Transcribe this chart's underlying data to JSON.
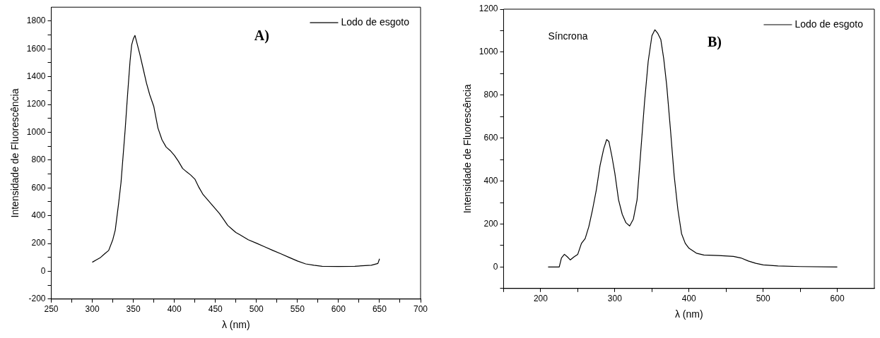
{
  "chart_data": [
    {
      "type": "line",
      "xlabel": "λ (nm)",
      "ylabel": "Intensidade de Fluorescência",
      "annotations": [
        "A)"
      ],
      "legend": "top right",
      "grid": false,
      "marker": "none",
      "line_style": "solid",
      "xlim": [
        250,
        700
      ],
      "ylim": [
        -200,
        1900
      ],
      "xticks": [
        250,
        {
          "value": 275,
          "label": null
        },
        300,
        {
          "value": 325,
          "label": null
        },
        350,
        {
          "value": 375,
          "label": null
        },
        400,
        {
          "value": 425,
          "label": null
        },
        450,
        {
          "value": 475,
          "label": null
        },
        500,
        {
          "value": 525,
          "label": null
        },
        550,
        {
          "value": 575,
          "label": null
        },
        600,
        {
          "value": 625,
          "label": null
        },
        650,
        {
          "value": 675,
          "label": null
        },
        700
      ],
      "yticks": [
        -200,
        {
          "value": -100,
          "label": null
        },
        0,
        {
          "value": 100,
          "label": null
        },
        200,
        {
          "value": 300,
          "label": null
        },
        400,
        {
          "value": 500,
          "label": null
        },
        600,
        {
          "value": 700,
          "label": null
        },
        800,
        {
          "value": 900,
          "label": null
        },
        1000,
        {
          "value": 1100,
          "label": null
        },
        1200,
        {
          "value": 1300,
          "label": null
        },
        1400,
        {
          "value": 1500,
          "label": null
        },
        1600,
        {
          "value": 1700,
          "label": null
        },
        1800
      ],
      "series": [
        {
          "name": "Lodo de esgoto",
          "color": "#000000",
          "x": [
            300,
            305,
            310,
            315,
            320,
            325,
            328,
            332,
            335,
            340,
            343,
            346,
            348,
            350,
            352,
            355,
            358,
            362,
            366,
            370,
            375,
            380,
            385,
            390,
            395,
            400,
            405,
            410,
            415,
            420,
            425,
            430,
            435,
            440,
            445,
            450,
            455,
            460,
            465,
            470,
            475,
            480,
            490,
            500,
            510,
            520,
            530,
            540,
            550,
            560,
            570,
            580,
            600,
            620,
            640,
            648,
            650
          ],
          "values": [
            65,
            82,
            99,
            125,
            150,
            227,
            296,
            484,
            638,
            1014,
            1270,
            1510,
            1629,
            1672,
            1697,
            1629,
            1560,
            1458,
            1355,
            1270,
            1185,
            1031,
            945,
            894,
            868,
            834,
            791,
            740,
            715,
            692,
            663,
            603,
            552,
            518,
            484,
            450,
            415,
            373,
            330,
            304,
            279,
            262,
            227,
            202,
            176,
            150,
            125,
            99,
            74,
            53,
            43,
            36,
            34,
            36,
            43,
            56,
            90
          ]
        }
      ]
    },
    {
      "type": "line",
      "xlabel": "λ (nm)",
      "ylabel": "Intensidade de Fluorescência",
      "annotations": [
        "Síncrona",
        "B)"
      ],
      "legend": "top right",
      "grid": false,
      "marker": "none",
      "line_style": "solid",
      "xlim": [
        150,
        650
      ],
      "ylim": [
        -100,
        1200
      ],
      "xticks": [
        {
          "value": 150,
          "label": null
        },
        200,
        {
          "value": 250,
          "label": null
        },
        300,
        {
          "value": 350,
          "label": null
        },
        400,
        {
          "value": 450,
          "label": null
        },
        500,
        {
          "value": 550,
          "label": null
        },
        600
      ],
      "yticks": [
        {
          "value": -100,
          "label": null
        },
        0,
        {
          "value": 100,
          "label": null
        },
        200,
        {
          "value": 300,
          "label": null
        },
        400,
        {
          "value": 500,
          "label": null
        },
        600,
        {
          "value": 700,
          "label": null
        },
        800,
        {
          "value": 900,
          "label": null
        },
        1000,
        {
          "value": 1100,
          "label": null
        },
        1200
      ],
      "series": [
        {
          "name": "Lodo de esgoto",
          "color": "#000000",
          "x": [
            210,
            225,
            228,
            232,
            236,
            240,
            245,
            250,
            255,
            260,
            265,
            270,
            275,
            280,
            285,
            289,
            292,
            296,
            300,
            305,
            310,
            315,
            320,
            325,
            330,
            335,
            340,
            345,
            350,
            354,
            358,
            362,
            366,
            370,
            375,
            380,
            385,
            390,
            395,
            400,
            410,
            420,
            440,
            460,
            470,
            480,
            490,
            500,
            520,
            550,
            600
          ],
          "values": [
            0,
            0,
            42,
            59,
            47,
            33,
            47,
            59,
            110,
            132,
            189,
            268,
            358,
            471,
            550,
            593,
            584,
            516,
            437,
            313,
            245,
            206,
            191,
            223,
            313,
            539,
            765,
            957,
            1076,
            1104,
            1087,
            1059,
            968,
            844,
            641,
            426,
            268,
            155,
            110,
            87,
            64,
            56,
            53,
            49,
            42,
            28,
            17,
            10,
            5,
            2,
            0
          ]
        }
      ]
    }
  ]
}
